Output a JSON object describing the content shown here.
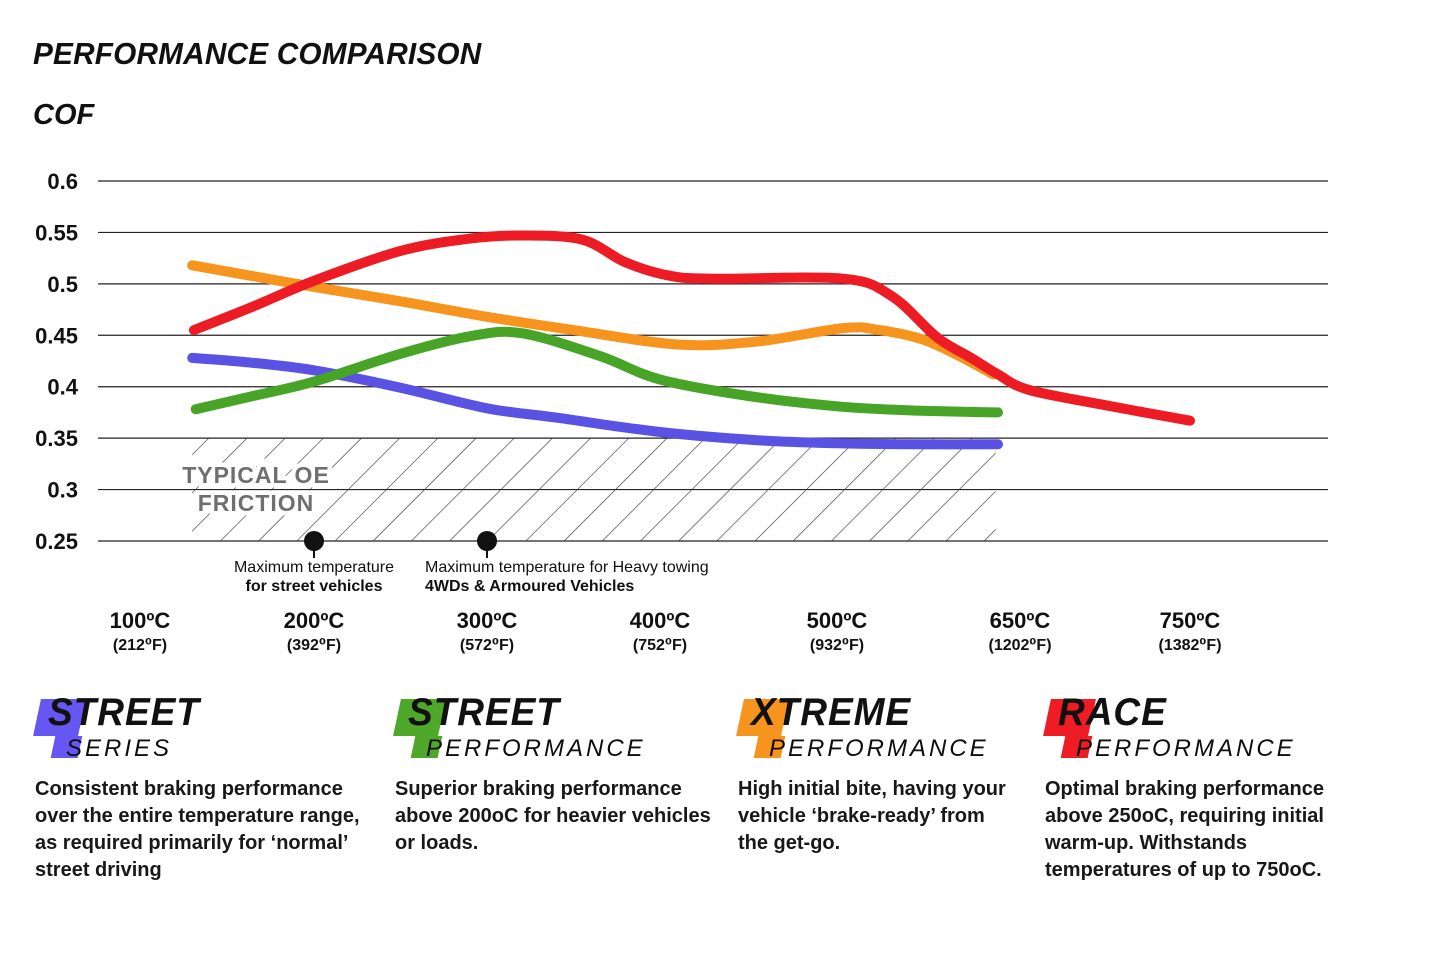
{
  "chart_data": {
    "type": "line",
    "title": "PERFORMANCE COMPARISON",
    "ylabel": "COF",
    "grid": true,
    "legend_position": "bottom",
    "ylim": [
      0.25,
      0.6
    ],
    "y_ticks": [
      "0.6",
      "0.55",
      "0.5",
      "0.45",
      "0.4",
      "0.35",
      "0.3",
      "0.25"
    ],
    "x_ticks": [
      {
        "temp": 100,
        "label_c": "100ºC",
        "label_f": "(212⁰F)"
      },
      {
        "temp": 200,
        "label_c": "200ºC",
        "label_f": "(392⁰F)"
      },
      {
        "temp": 300,
        "label_c": "300ºC",
        "label_f": "(572⁰F)"
      },
      {
        "temp": 400,
        "label_c": "400ºC",
        "label_f": "(752⁰F)"
      },
      {
        "temp": 500,
        "label_c": "500ºC",
        "label_f": "(932⁰F)"
      },
      {
        "temp": 650,
        "label_c": "650ºC",
        "label_f": "(1202⁰F)"
      },
      {
        "temp": 750,
        "label_c": "750ºC",
        "label_f": "(1382⁰F)"
      }
    ],
    "series": [
      {
        "name": "Xtreme Performance",
        "color": "#f7941d",
        "points": [
          [
            130,
            0.518
          ],
          [
            200,
            0.497
          ],
          [
            250,
            0.483
          ],
          [
            300,
            0.468
          ],
          [
            350,
            0.455
          ],
          [
            410,
            0.441
          ],
          [
            455,
            0.444
          ],
          [
            505,
            0.457
          ],
          [
            535,
            0.455
          ],
          [
            570,
            0.446
          ],
          [
            600,
            0.43
          ],
          [
            628,
            0.412
          ]
        ]
      },
      {
        "name": "Street Series",
        "color": "#5a52e2",
        "points": [
          [
            130,
            0.428
          ],
          [
            160,
            0.424
          ],
          [
            200,
            0.416
          ],
          [
            250,
            0.399
          ],
          [
            300,
            0.379
          ],
          [
            340,
            0.37
          ],
          [
            400,
            0.356
          ],
          [
            455,
            0.348
          ],
          [
            500,
            0.345
          ],
          [
            560,
            0.344
          ],
          [
            632,
            0.344
          ]
        ]
      },
      {
        "name": "Street Performance",
        "color": "#48a427",
        "points": [
          [
            132,
            0.378
          ],
          [
            165,
            0.391
          ],
          [
            200,
            0.405
          ],
          [
            250,
            0.432
          ],
          [
            290,
            0.449
          ],
          [
            320,
            0.452
          ],
          [
            365,
            0.43
          ],
          [
            400,
            0.407
          ],
          [
            450,
            0.391
          ],
          [
            500,
            0.381
          ],
          [
            560,
            0.377
          ],
          [
            632,
            0.375
          ]
        ]
      },
      {
        "name": "Race Performance",
        "color": "#ed1c24",
        "points": [
          [
            131,
            0.455
          ],
          [
            165,
            0.478
          ],
          [
            200,
            0.503
          ],
          [
            250,
            0.532
          ],
          [
            290,
            0.544
          ],
          [
            320,
            0.547
          ],
          [
            355,
            0.543
          ],
          [
            380,
            0.521
          ],
          [
            405,
            0.508
          ],
          [
            430,
            0.505
          ],
          [
            505,
            0.505
          ],
          [
            545,
            0.488
          ],
          [
            582,
            0.448
          ],
          [
            610,
            0.428
          ],
          [
            632,
            0.412
          ],
          [
            655,
            0.397
          ],
          [
            697,
            0.383
          ],
          [
            755,
            0.367
          ]
        ]
      }
    ],
    "oe_zone": {
      "label_line1": "TYPICAL OE",
      "label_line2": "FRICTION",
      "cof_min": 0.25,
      "cof_max": 0.35,
      "temp_min": 130,
      "temp_max": 630,
      "label_color": "#6f6f6f"
    },
    "markers": [
      {
        "temp": 200,
        "cof": 0.25,
        "align": "center",
        "line1": "Maximum temperature",
        "line2": "for street vehicles"
      },
      {
        "temp": 300,
        "cof": 0.25,
        "align": "left",
        "line1": "Maximum temperature for Heavy towing",
        "line2": "4WDs & Armoured Vehicles"
      }
    ]
  },
  "legends": [
    {
      "word1": "STREET",
      "word2": "SERIES",
      "color": "#6657f2",
      "desc": "Consistent braking performance over the entire temperature range, as required primarily for ‘normal’ street driving"
    },
    {
      "word1": "STREET",
      "word2": "PERFORMANCE",
      "color": "#4fa82a",
      "desc": "Superior braking performance above 200oC for heavier vehicles or loads."
    },
    {
      "word1": "XTREME",
      "word2": "PERFORMANCE",
      "color": "#f7941e",
      "desc": "High initial bite, having your vehicle ‘brake-ready’ from the get-go."
    },
    {
      "word1": "RACE",
      "word2": "PERFORMANCE",
      "color": "#ee1c24",
      "desc": "Optimal braking performance above 250oC, requiring initial warm-up. Withstands temperatures of up to 750oC."
    }
  ]
}
